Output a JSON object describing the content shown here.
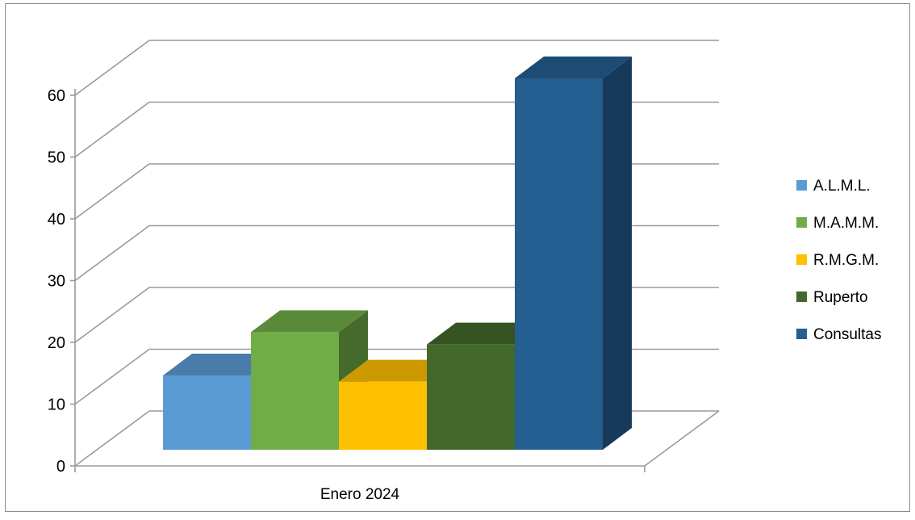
{
  "chart_data": {
    "type": "bar",
    "three_d": true,
    "categories": [
      "Enero 2024"
    ],
    "series": [
      {
        "name": "A.L.M.L.",
        "values": [
          12
        ],
        "color": "#5b9bd5"
      },
      {
        "name": "M.A.M.M.",
        "values": [
          19
        ],
        "color": "#70ad47"
      },
      {
        "name": "R.M.G.M.",
        "values": [
          11
        ],
        "color": "#ffc000"
      },
      {
        "name": "Ruperto",
        "values": [
          17
        ],
        "color": "#43682b"
      },
      {
        "name": "Consultas",
        "values": [
          60
        ],
        "color": "#255e91"
      }
    ],
    "y_ticks": [
      "0",
      "10",
      "20",
      "30",
      "40",
      "50",
      "60"
    ],
    "ylim": [
      0,
      60
    ],
    "grid": true,
    "legend_position": "right",
    "title": "",
    "xlabel": "",
    "ylabel": ""
  }
}
